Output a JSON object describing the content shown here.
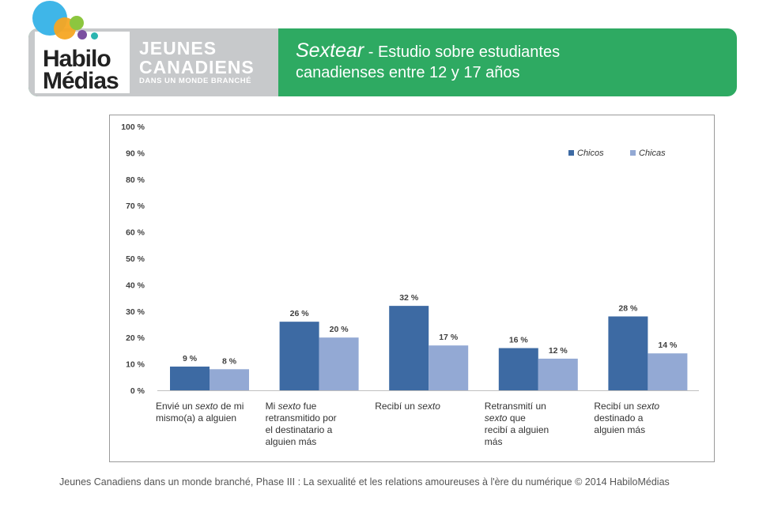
{
  "header": {
    "logo_top": "Habilo",
    "logo_bottom": "Médias",
    "brand_line1": "JEUNES",
    "brand_line2": "CANADIENS",
    "brand_line3": "DANS UN MONDE BRANCHÉ",
    "title_italic": "Sextear",
    "title_rest": " - Estudio sobre estudiantes",
    "title_line2": "canadienses entre 12 y 17 años",
    "colors": {
      "banner": "#2eaa62",
      "brand_panel": "#c7c9cb"
    }
  },
  "chart_data": {
    "type": "bar",
    "ylim": [
      0,
      100
    ],
    "y_ticks": [
      "0 %",
      "10 %",
      "20 %",
      "30 %",
      "40 %",
      "50 %",
      "60 %",
      "70 %",
      "80 %",
      "90 %",
      "100 %"
    ],
    "legend_position": "top-right",
    "grid": false,
    "categories": [
      [
        "Envié un ",
        {
          "i": "sexto"
        },
        " de mi",
        "|",
        "mismo(a) a alguien"
      ],
      [
        "Mi ",
        {
          "i": "sexto"
        },
        " fue",
        "|",
        "retransmitido por",
        "|",
        "el destinatario a",
        "|",
        "alguien más"
      ],
      [
        "Recibí un ",
        {
          "i": "sexto"
        }
      ],
      [
        "Retransmití un",
        "|",
        {
          "i": "sexto"
        },
        " que",
        "|",
        "recibí a alguien",
        "|",
        "más"
      ],
      [
        "Recibí un ",
        {
          "i": "sexto"
        },
        "|",
        "destinado a",
        "|",
        "alguien más"
      ]
    ],
    "series": [
      {
        "name": "Chicos",
        "color": "#3d6aa3",
        "values": [
          9,
          26,
          32,
          16,
          28
        ],
        "labels": [
          "9 %",
          "26 %",
          "32 %",
          "16 %",
          "28 %"
        ]
      },
      {
        "name": "Chicas",
        "color": "#93a9d4",
        "values": [
          8,
          20,
          17,
          12,
          14
        ],
        "labels": [
          "8 %",
          "20 %",
          "17 %",
          "12 %",
          "14 %"
        ]
      }
    ]
  },
  "footer": "Jeunes Canadiens dans un monde branché, Phase III : La sexualité et les relations amoureuses à l'ère du numérique © 2014 HabiloMédias"
}
